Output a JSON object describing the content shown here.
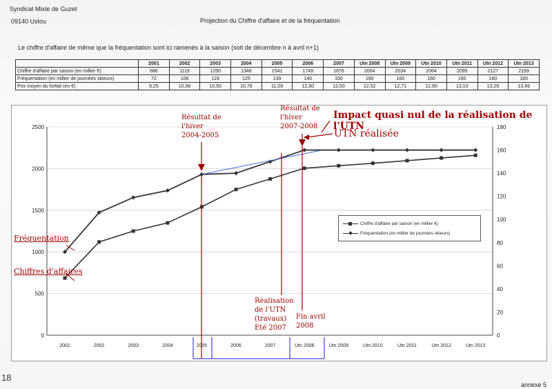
{
  "header": {
    "org": "Syndicat Mixte de Guzet",
    "address": "09140 Ustou",
    "title": "Projection du Chiffre d'affaire et  de la fréquentation",
    "intro": "Le chiffre d'affaire de même que la fréquentation sont ici ramenés à la saison (soit de décembre n à avril n+1)",
    "annex": "annexe 5",
    "edge_mark": "18"
  },
  "table": {
    "columns": [
      "2001",
      "2002",
      "2003",
      "2004",
      "2005",
      "2006",
      "2007",
      "Utn 2008",
      "Utn 2009",
      "Utn 2010",
      "Utn 2011",
      "Utn 2012",
      "Utn 2013"
    ],
    "rows": [
      {
        "label": "Chiffre d'affaire par saison (en millier €)",
        "values": [
          "686",
          "1119",
          "1250",
          "1348",
          "1541",
          "1749",
          "1876",
          "2004",
          "2034",
          "2064",
          "2095",
          "2127",
          "2159"
        ]
      },
      {
        "label": "Fréquentation (en millier de journées skieurs)",
        "values": [
          "72",
          "106",
          "119",
          "125",
          "139",
          "140",
          "150",
          "160",
          "160",
          "160",
          "160",
          "160",
          "160"
        ]
      },
      {
        "label": "Prix moyen du forfait (en €)",
        "values": [
          "9,25",
          "10,56",
          "10,50",
          "10,78",
          "11,09",
          "12,50",
          "12,50",
          "12,52",
          "12,71",
          "12,90",
          "13,10",
          "13,29",
          "13,49"
        ]
      }
    ]
  },
  "annotations": {
    "impact": "Impact quasi nul de la réalisation de l'UTN",
    "utn_done": "UTN réalisée",
    "freq_label": "Fréquentation",
    "ca_label": "Chiffres d'affaires",
    "res2005": [
      "Résultat de",
      "l'hiver",
      "2004-2005"
    ],
    "res2008": [
      "Résultat de",
      "l'hiver",
      "2007-2008"
    ],
    "realisation": [
      "Réalisation",
      "de l'UTN",
      "(travaux)",
      "Eté 2007"
    ],
    "fin_avril": [
      "Fin avril",
      "2008"
    ]
  },
  "chart_data": {
    "type": "line",
    "categories": [
      "2001",
      "2002",
      "2003",
      "2004",
      "2005",
      "2006",
      "2007",
      "Utn 2008",
      "Utn 2009",
      "Utn 2010",
      "Utn 2011",
      "Utn 2012",
      "Utn 2013"
    ],
    "y_left": {
      "ticks": [
        "0",
        "500",
        "1000",
        "1500",
        "2000",
        "2500"
      ],
      "range": [
        0,
        2500
      ]
    },
    "y_right": {
      "ticks": [
        "0",
        "20",
        "40",
        "60",
        "80",
        "100",
        "120",
        "140",
        "160",
        "180"
      ],
      "range": [
        0,
        180
      ]
    },
    "series": [
      {
        "name": "Chiffre d'affaire par saison (en millier €)",
        "axis": "left",
        "marker": "square",
        "values": [
          686,
          1119,
          1250,
          1348,
          1541,
          1749,
          1876,
          2004,
          2034,
          2064,
          2095,
          2127,
          2159
        ]
      },
      {
        "name": "Fréquentation (en millier de journées skieurs)",
        "axis": "right",
        "marker": "diamond",
        "values": [
          72,
          106,
          119,
          125,
          139,
          140,
          150,
          160,
          160,
          160,
          160,
          160,
          160
        ]
      }
    ],
    "grid": "horizontal",
    "legend": "right",
    "colors": {
      "series": "#333333",
      "annotation": "#a00000",
      "trend": "#3a6fd8",
      "axis_marks": "#1a1acc"
    }
  }
}
